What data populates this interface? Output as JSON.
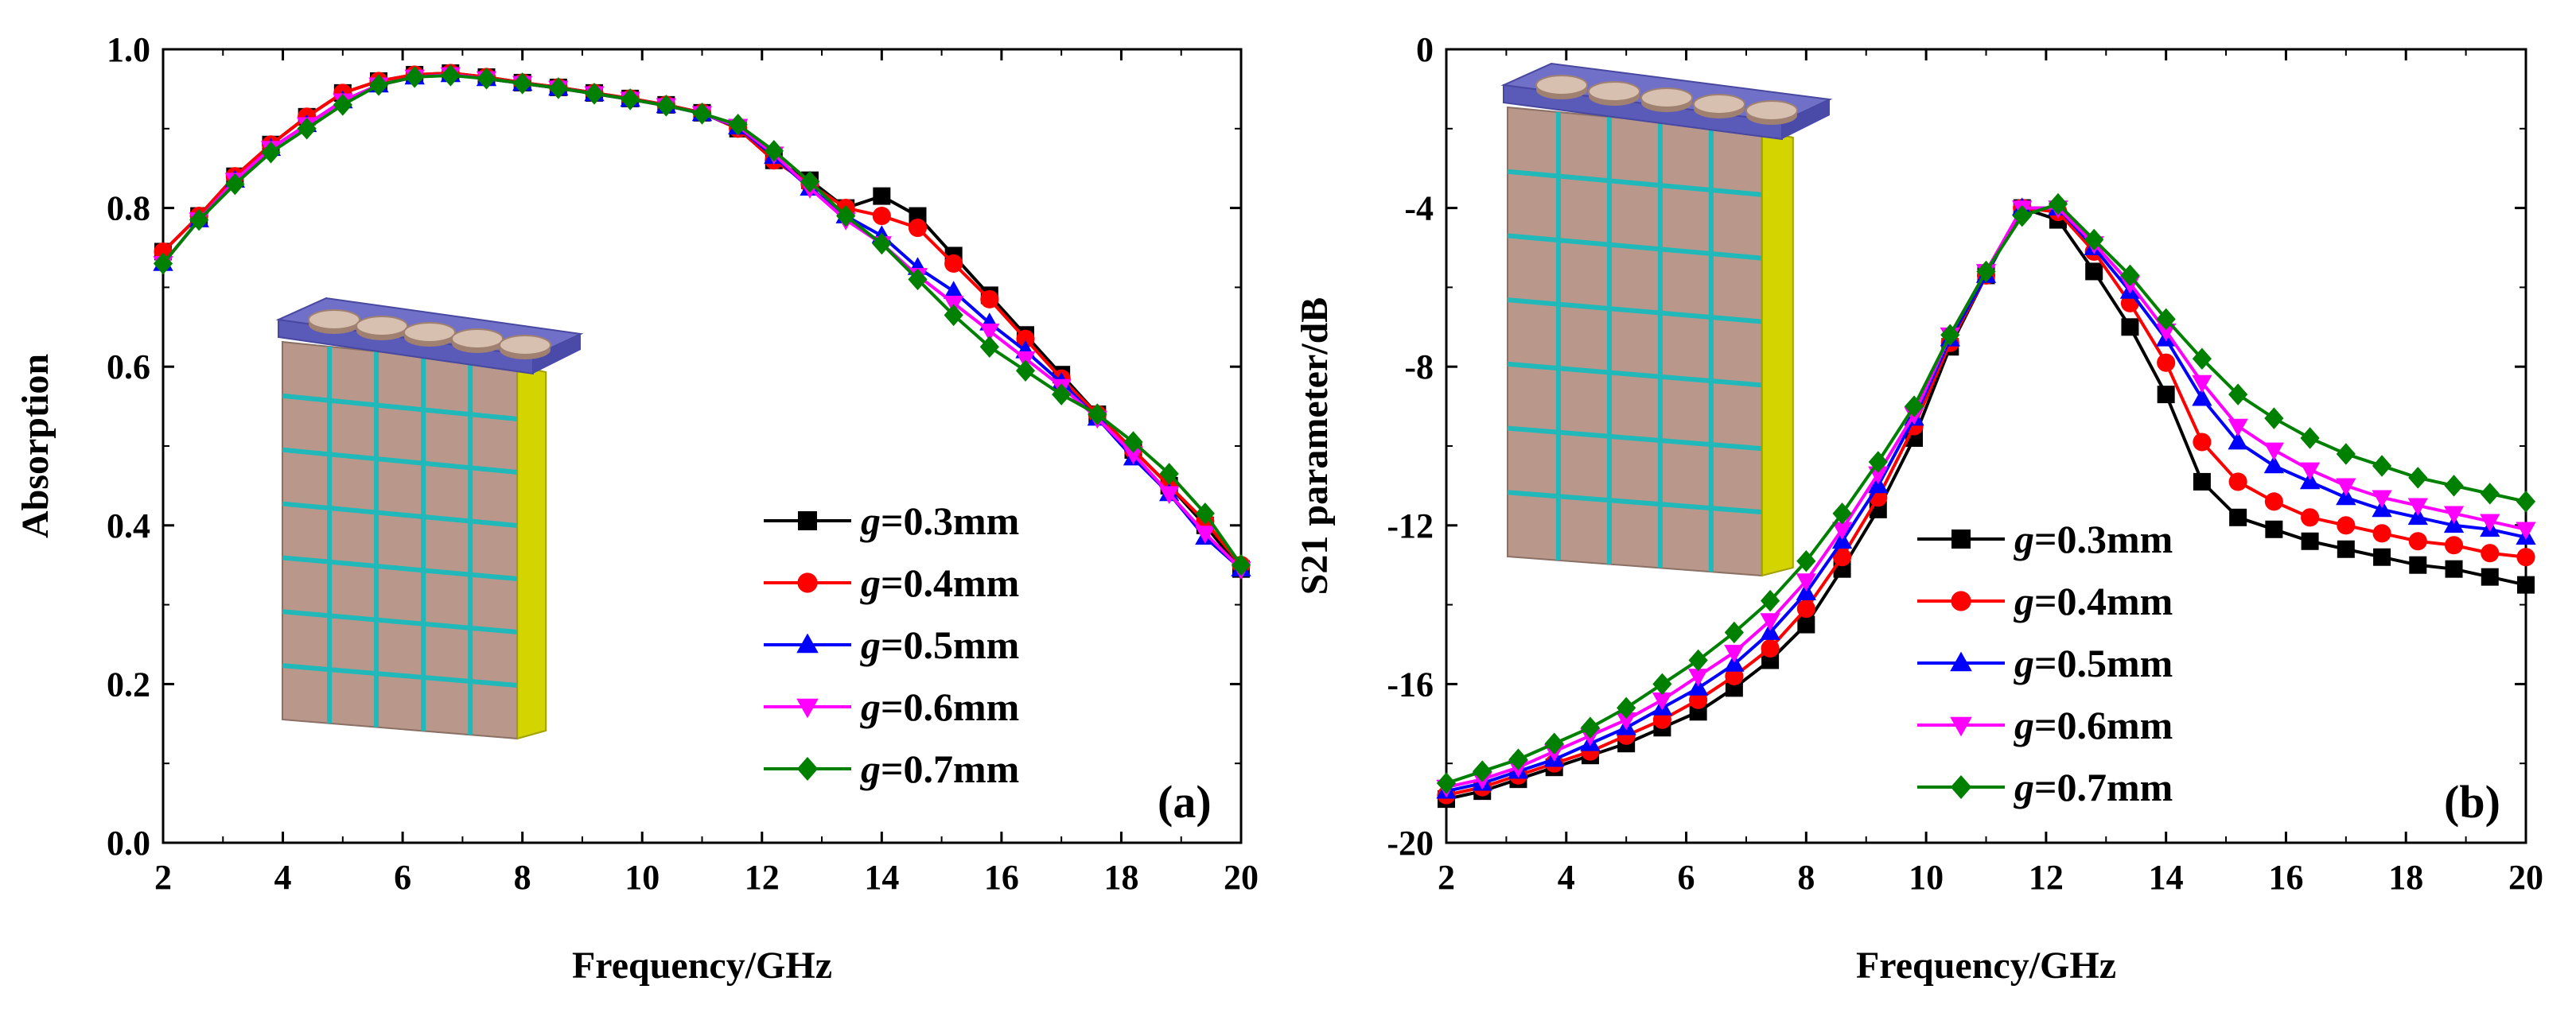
{
  "chart_data": [
    {
      "type": "line",
      "panel_label": "(a)",
      "xlabel": "Frequency/GHz",
      "ylabel": "Absorption",
      "xlim": [
        2,
        20
      ],
      "ylim": [
        0,
        1
      ],
      "xticks": [
        "2",
        "4",
        "6",
        "8",
        "10",
        "12",
        "14",
        "16",
        "18",
        "20"
      ],
      "yticks": [
        "0.0",
        "0.2",
        "0.4",
        "0.6",
        "0.8",
        "1.0"
      ],
      "legend_position": "lower-center",
      "series": [
        {
          "name": "g",
          "suffix": "=0.3mm",
          "color": "#000000",
          "marker": "square",
          "x": [
            2,
            2.6,
            3.2,
            3.8,
            4.4,
            5,
            5.6,
            6.2,
            6.8,
            7.4,
            8,
            8.6,
            9.2,
            9.8,
            10.4,
            11,
            11.6,
            12.2,
            12.8,
            13.4,
            14,
            14.6,
            15.2,
            15.8,
            16.4,
            17,
            17.6,
            18.2,
            18.8,
            19.4,
            20
          ],
          "y": [
            0.745,
            0.79,
            0.84,
            0.88,
            0.915,
            0.945,
            0.96,
            0.968,
            0.97,
            0.965,
            0.958,
            0.952,
            0.945,
            0.938,
            0.93,
            0.92,
            0.9,
            0.86,
            0.835,
            0.8,
            0.815,
            0.79,
            0.74,
            0.69,
            0.64,
            0.59,
            0.54,
            0.495,
            0.45,
            0.4,
            0.345
          ]
        },
        {
          "name": "g",
          "suffix": "=0.4mm",
          "color": "#ff0000",
          "marker": "circle",
          "x": [
            2,
            2.6,
            3.2,
            3.8,
            4.4,
            5,
            5.6,
            6.2,
            6.8,
            7.4,
            8,
            8.6,
            9.2,
            9.8,
            10.4,
            11,
            11.6,
            12.2,
            12.8,
            13.4,
            14,
            14.6,
            15.2,
            15.8,
            16.4,
            17,
            17.6,
            18.2,
            18.8,
            19.4,
            20
          ],
          "y": [
            0.745,
            0.79,
            0.84,
            0.88,
            0.915,
            0.945,
            0.96,
            0.968,
            0.97,
            0.965,
            0.958,
            0.952,
            0.945,
            0.938,
            0.93,
            0.92,
            0.9,
            0.86,
            0.83,
            0.8,
            0.79,
            0.775,
            0.73,
            0.685,
            0.635,
            0.585,
            0.54,
            0.495,
            0.45,
            0.405,
            0.35
          ]
        },
        {
          "name": "g",
          "suffix": "=0.5mm",
          "color": "#0000ff",
          "marker": "triangle-up",
          "x": [
            2,
            2.6,
            3.2,
            3.8,
            4.4,
            5,
            5.6,
            6.2,
            6.8,
            7.4,
            8,
            8.6,
            9.2,
            9.8,
            10.4,
            11,
            11.6,
            12.2,
            12.8,
            13.4,
            14,
            14.6,
            15.2,
            15.8,
            16.4,
            17,
            17.6,
            18.2,
            18.8,
            19.4,
            20
          ],
          "y": [
            0.73,
            0.785,
            0.835,
            0.875,
            0.905,
            0.935,
            0.955,
            0.965,
            0.968,
            0.963,
            0.957,
            0.951,
            0.944,
            0.937,
            0.929,
            0.919,
            0.902,
            0.865,
            0.825,
            0.79,
            0.765,
            0.725,
            0.695,
            0.655,
            0.62,
            0.58,
            0.535,
            0.485,
            0.44,
            0.385,
            0.345
          ]
        },
        {
          "name": "g",
          "suffix": "=0.6mm",
          "color": "#ff00ff",
          "marker": "triangle-down",
          "x": [
            2,
            2.6,
            3.2,
            3.8,
            4.4,
            5,
            5.6,
            6.2,
            6.8,
            7.4,
            8,
            8.6,
            9.2,
            9.8,
            10.4,
            11,
            11.6,
            12.2,
            12.8,
            13.4,
            14,
            14.6,
            15.2,
            15.8,
            16.4,
            17,
            17.6,
            18.2,
            18.8,
            19.4,
            20
          ],
          "y": [
            0.73,
            0.785,
            0.835,
            0.875,
            0.905,
            0.935,
            0.955,
            0.965,
            0.968,
            0.963,
            0.957,
            0.951,
            0.944,
            0.937,
            0.929,
            0.919,
            0.903,
            0.868,
            0.825,
            0.785,
            0.755,
            0.715,
            0.68,
            0.645,
            0.61,
            0.575,
            0.535,
            0.49,
            0.44,
            0.39,
            0.345
          ]
        },
        {
          "name": "g",
          "suffix": "=0.7mm",
          "color": "#008000",
          "marker": "diamond",
          "x": [
            2,
            2.6,
            3.2,
            3.8,
            4.4,
            5,
            5.6,
            6.2,
            6.8,
            7.4,
            8,
            8.6,
            9.2,
            9.8,
            10.4,
            11,
            11.6,
            12.2,
            12.8,
            13.4,
            14,
            14.6,
            15.2,
            15.8,
            16.4,
            17,
            17.6,
            18.2,
            18.8,
            19.4,
            20
          ],
          "y": [
            0.73,
            0.785,
            0.83,
            0.87,
            0.9,
            0.93,
            0.955,
            0.965,
            0.967,
            0.963,
            0.957,
            0.951,
            0.944,
            0.937,
            0.929,
            0.919,
            0.905,
            0.872,
            0.833,
            0.79,
            0.755,
            0.71,
            0.665,
            0.625,
            0.595,
            0.565,
            0.54,
            0.505,
            0.465,
            0.415,
            0.35
          ]
        }
      ]
    },
    {
      "type": "line",
      "panel_label": "(b)",
      "xlabel": "Frequency/GHz",
      "ylabel": "S21 parameter/dB",
      "xlim": [
        2,
        20
      ],
      "ylim": [
        -20,
        0
      ],
      "xticks": [
        "2",
        "4",
        "6",
        "8",
        "10",
        "12",
        "14",
        "16",
        "18",
        "20"
      ],
      "yticks": [
        "-20",
        "-16",
        "-12",
        "-8",
        "-4",
        "0"
      ],
      "legend_position": "center-right",
      "series": [
        {
          "name": "g",
          "suffix": "=0.3mm",
          "color": "#000000",
          "marker": "square",
          "x": [
            2,
            2.6,
            3.2,
            3.8,
            4.4,
            5,
            5.6,
            6.2,
            6.8,
            7.4,
            8,
            8.6,
            9.2,
            9.8,
            10.4,
            11,
            11.6,
            12.2,
            12.8,
            13.4,
            14,
            14.6,
            15.2,
            15.8,
            16.4,
            17,
            17.6,
            18.2,
            18.8,
            19.4,
            20
          ],
          "y": [
            -18.9,
            -18.7,
            -18.4,
            -18.1,
            -17.8,
            -17.5,
            -17.1,
            -16.7,
            -16.1,
            -15.4,
            -14.5,
            -13.1,
            -11.6,
            -9.8,
            -7.5,
            -5.7,
            -4.0,
            -4.3,
            -5.6,
            -7.0,
            -8.7,
            -10.9,
            -11.8,
            -12.1,
            -12.4,
            -12.6,
            -12.8,
            -13.0,
            -13.1,
            -13.3,
            -13.5
          ]
        },
        {
          "name": "g",
          "suffix": "=0.4mm",
          "color": "#ff0000",
          "marker": "circle",
          "x": [
            2,
            2.6,
            3.2,
            3.8,
            4.4,
            5,
            5.6,
            6.2,
            6.8,
            7.4,
            8,
            8.6,
            9.2,
            9.8,
            10.4,
            11,
            11.6,
            12.2,
            12.8,
            13.4,
            14,
            14.6,
            15.2,
            15.8,
            16.4,
            17,
            17.6,
            18.2,
            18.8,
            19.4,
            20
          ],
          "y": [
            -18.8,
            -18.6,
            -18.3,
            -18.0,
            -17.7,
            -17.3,
            -16.9,
            -16.4,
            -15.8,
            -15.1,
            -14.1,
            -12.8,
            -11.3,
            -9.5,
            -7.4,
            -5.7,
            -4.0,
            -4.1,
            -5.1,
            -6.4,
            -7.9,
            -9.9,
            -10.9,
            -11.4,
            -11.8,
            -12.0,
            -12.2,
            -12.4,
            -12.5,
            -12.7,
            -12.8
          ]
        },
        {
          "name": "g",
          "suffix": "=0.5mm",
          "color": "#0000ff",
          "marker": "triangle-up",
          "x": [
            2,
            2.6,
            3.2,
            3.8,
            4.4,
            5,
            5.6,
            6.2,
            6.8,
            7.4,
            8,
            8.6,
            9.2,
            9.8,
            10.4,
            11,
            11.6,
            12.2,
            12.8,
            13.4,
            14,
            14.6,
            15.2,
            15.8,
            16.4,
            17,
            17.6,
            18.2,
            18.8,
            19.4,
            20
          ],
          "y": [
            -18.7,
            -18.5,
            -18.2,
            -17.9,
            -17.5,
            -17.1,
            -16.6,
            -16.1,
            -15.5,
            -14.7,
            -13.7,
            -12.4,
            -11.0,
            -9.3,
            -7.3,
            -5.7,
            -4.0,
            -4.0,
            -5.0,
            -6.1,
            -7.3,
            -8.8,
            -9.9,
            -10.5,
            -10.9,
            -11.3,
            -11.6,
            -11.8,
            -12.0,
            -12.1,
            -12.3
          ]
        },
        {
          "name": "g",
          "suffix": "=0.6mm",
          "color": "#ff00ff",
          "marker": "triangle-down",
          "x": [
            2,
            2.6,
            3.2,
            3.8,
            4.4,
            5,
            5.6,
            6.2,
            6.8,
            7.4,
            8,
            8.6,
            9.2,
            9.8,
            10.4,
            11,
            11.6,
            12.2,
            12.8,
            13.4,
            14,
            14.6,
            15.2,
            15.8,
            16.4,
            17,
            17.6,
            18.2,
            18.8,
            19.4,
            20
          ],
          "y": [
            -18.6,
            -18.4,
            -18.1,
            -17.7,
            -17.3,
            -16.9,
            -16.4,
            -15.8,
            -15.2,
            -14.4,
            -13.4,
            -12.1,
            -10.7,
            -9.2,
            -7.2,
            -5.6,
            -4.0,
            -4.0,
            -4.9,
            -5.9,
            -7.1,
            -8.4,
            -9.5,
            -10.1,
            -10.6,
            -11.0,
            -11.3,
            -11.5,
            -11.7,
            -11.9,
            -12.1
          ]
        },
        {
          "name": "g",
          "suffix": "=0.7mm",
          "color": "#008000",
          "marker": "diamond",
          "x": [
            2,
            2.6,
            3.2,
            3.8,
            4.4,
            5,
            5.6,
            6.2,
            6.8,
            7.4,
            8,
            8.6,
            9.2,
            9.8,
            10.4,
            11,
            11.6,
            12.2,
            12.8,
            13.4,
            14,
            14.6,
            15.2,
            15.8,
            16.4,
            17,
            17.6,
            18.2,
            18.8,
            19.4,
            20
          ],
          "y": [
            -18.5,
            -18.2,
            -17.9,
            -17.5,
            -17.1,
            -16.6,
            -16.0,
            -15.4,
            -14.7,
            -13.9,
            -12.9,
            -11.7,
            -10.4,
            -9.0,
            -7.2,
            -5.6,
            -4.2,
            -3.9,
            -4.8,
            -5.7,
            -6.8,
            -7.8,
            -8.7,
            -9.3,
            -9.8,
            -10.2,
            -10.5,
            -10.8,
            -11.0,
            -11.2,
            -11.4
          ]
        }
      ]
    }
  ]
}
